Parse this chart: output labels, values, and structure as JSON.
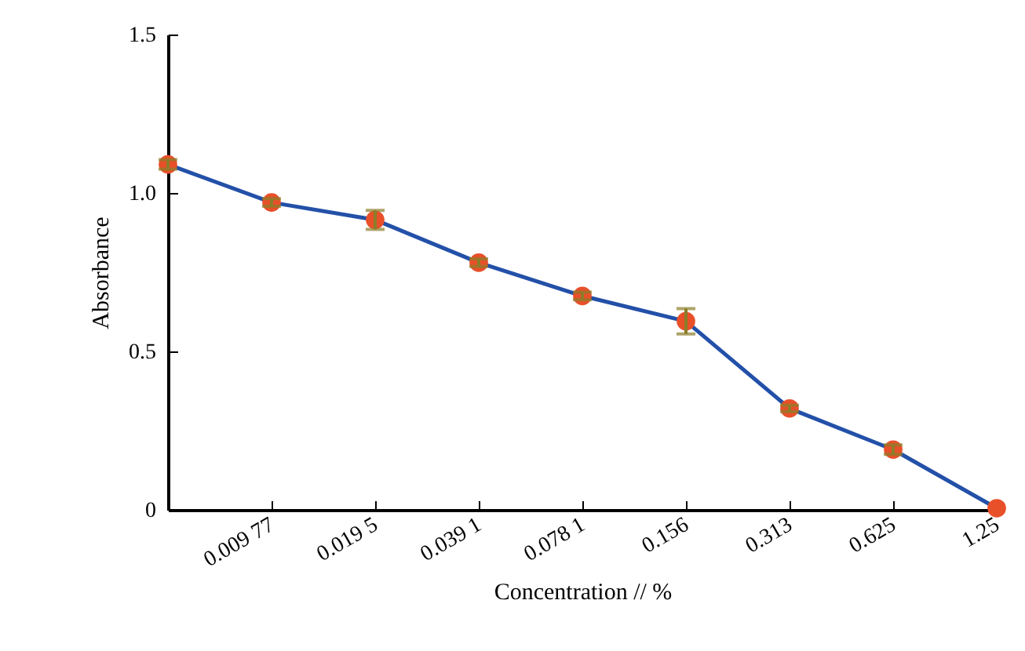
{
  "chart_data": {
    "type": "line",
    "xlabel": "Concentration // %",
    "ylabel": "Absorbance",
    "categories": [
      null,
      "0.009 77",
      "0.019 5",
      "0.039 1",
      "0.078 1",
      "0.156",
      "0.313",
      "0.625",
      "1.25"
    ],
    "series": [
      {
        "color": "#2350a8",
        "colors": [
          "#e8502a",
          "#e8502a",
          "#e8502a",
          "#e8502a",
          "#e8502a",
          "#e8502a",
          "#e8502a",
          "#e8502a",
          "#e8502a"
        ],
        "values": [
          1.09,
          0.97,
          0.915,
          0.78,
          0.675,
          0.595,
          0.32,
          0.19,
          0.005
        ],
        "errors": [
          0.015,
          0.012,
          0.03,
          0.012,
          0.012,
          0.04,
          0.01,
          0.015,
          null
        ]
      }
    ],
    "ylim": [
      0,
      1.5
    ],
    "yticks": [
      0,
      0.5,
      {
        "value": 1.0,
        "label": "1.0"
      },
      1.5
    ],
    "marker": "circle",
    "line_style": "solid"
  }
}
